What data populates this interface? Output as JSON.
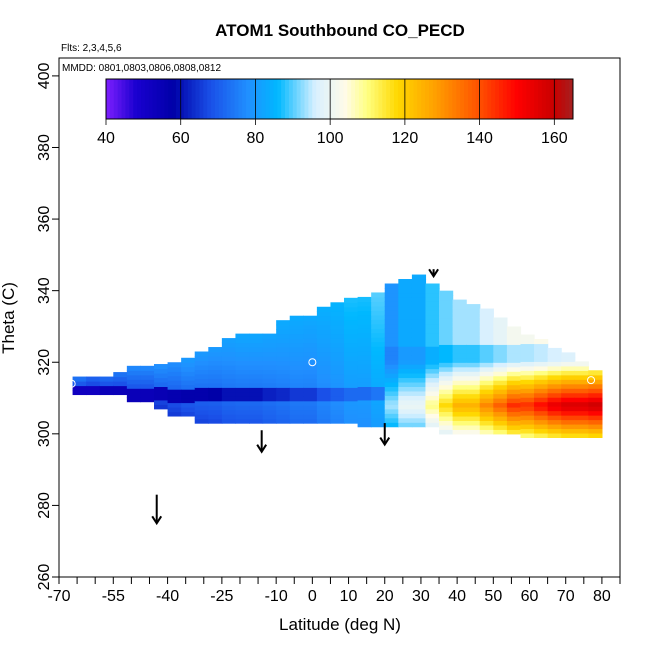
{
  "chart_data": {
    "type": "heatmap",
    "title": "ATOM1 Southbound CO_PECD",
    "flights_note": "Flts: 2,3,4,5,6",
    "dates_note": "MMDD: 0801,0803,0806,0808,0812",
    "xlabel": "Latitude (deg N)",
    "ylabel": "Theta (C)",
    "xlim": [
      -70,
      85
    ],
    "ylim": [
      260,
      405
    ],
    "x_ticks": [
      -70,
      -55,
      -40,
      -25,
      -10,
      0,
      10,
      20,
      30,
      40,
      50,
      60,
      70,
      80
    ],
    "y_ticks": [
      260,
      280,
      300,
      320,
      340,
      360,
      380,
      400
    ],
    "colorbar": {
      "range": [
        40,
        165
      ],
      "ticks": [
        40,
        60,
        80,
        100,
        120,
        140,
        160
      ],
      "stops": [
        {
          "v": 40,
          "color": "#7f1fff"
        },
        {
          "v": 48,
          "color": "#1a00d0"
        },
        {
          "v": 58,
          "color": "#0000a8"
        },
        {
          "v": 68,
          "color": "#1a50e8"
        },
        {
          "v": 78,
          "color": "#2090ff"
        },
        {
          "v": 86,
          "color": "#00b8ff"
        },
        {
          "v": 96,
          "color": "#d8f0ff"
        },
        {
          "v": 104,
          "color": "#fffbe8"
        },
        {
          "v": 110,
          "color": "#ffff80"
        },
        {
          "v": 118,
          "color": "#ffd800"
        },
        {
          "v": 128,
          "color": "#ffa000"
        },
        {
          "v": 140,
          "color": "#ff5000"
        },
        {
          "v": 150,
          "color": "#ff0000"
        },
        {
          "v": 160,
          "color": "#c80000"
        },
        {
          "v": 165,
          "color": "#a52020"
        }
      ]
    },
    "field": {
      "theta_bottom": [
        null,
        311,
        311,
        311,
        311,
        309,
        309,
        307,
        305,
        305,
        303,
        303,
        303,
        303,
        303,
        303,
        303,
        303,
        303,
        303,
        303,
        303,
        302,
        302,
        302,
        302,
        302,
        302,
        300,
        300,
        300,
        300,
        300,
        300,
        299,
        299,
        299,
        299,
        299,
        299
      ],
      "theta_top": [
        null,
        315,
        316,
        316,
        317,
        318,
        318,
        319,
        320,
        321,
        323,
        324,
        326,
        327,
        327,
        328,
        331,
        332,
        333,
        335,
        336,
        337,
        338,
        339,
        341,
        343,
        344,
        341,
        339,
        337,
        336,
        334,
        332,
        329,
        327,
        326,
        324,
        322,
        320,
        317
      ],
      "low_core_theta_min": 309,
      "low_core_theta_max": 313,
      "bins": [
        {
          "lat": -67.5,
          "low": 46,
          "high": 70
        },
        {
          "lat": -62.5,
          "low": 52,
          "high": 72
        },
        {
          "lat": -57.5,
          "low": 54,
          "high": 73
        },
        {
          "lat": -52.5,
          "low": 54,
          "high": 74
        },
        {
          "lat": -47.5,
          "low": 54,
          "high": 76
        },
        {
          "lat": -42.5,
          "low": 55,
          "high": 78
        },
        {
          "lat": -37.5,
          "low": 56,
          "high": 78
        },
        {
          "lat": -32.5,
          "low": 57,
          "high": 80
        },
        {
          "lat": -27.5,
          "low": 58,
          "high": 80
        },
        {
          "lat": -22.5,
          "low": 60,
          "high": 81
        },
        {
          "lat": -17.5,
          "low": 60,
          "high": 82
        },
        {
          "lat": -12.5,
          "low": 62,
          "high": 82
        },
        {
          "lat": -7.5,
          "low": 63,
          "high": 83
        },
        {
          "lat": -2.5,
          "low": 65,
          "high": 83
        },
        {
          "lat": 2.5,
          "low": 68,
          "high": 84
        },
        {
          "lat": 7.5,
          "low": 70,
          "high": 85
        },
        {
          "lat": 12.5,
          "low": 72,
          "high": 87
        },
        {
          "lat": 17.5,
          "low": 74,
          "high": 90
        },
        {
          "lat": 22.5,
          "low": 76,
          "high": 94
        },
        {
          "lat": 27.5,
          "low": 80,
          "high": 100
        },
        {
          "lat": 32.5,
          "low": 84,
          "high": 110
        },
        {
          "lat": 37.5,
          "low": 86,
          "high": 118
        },
        {
          "lat": 42.5,
          "low": 88,
          "high": 125
        },
        {
          "lat": 47.5,
          "low": 90,
          "high": 132
        },
        {
          "lat": 52.5,
          "low": 92,
          "high": 138
        },
        {
          "lat": 57.5,
          "low": 94,
          "high": 145
        },
        {
          "lat": 62.5,
          "low": 95,
          "high": 150
        },
        {
          "lat": 67.5,
          "low": 96,
          "high": 155
        },
        {
          "lat": 72.5,
          "low": 97,
          "high": 158
        },
        {
          "lat": 77.5,
          "low": 98,
          "high": 160
        }
      ]
    },
    "flight_markers": [
      {
        "lat": -67.5,
        "theta": 312
      },
      {
        "lat": -66.5,
        "theta": 314
      },
      {
        "lat": 0,
        "theta": 320
      },
      {
        "lat": 77,
        "theta": 315
      }
    ],
    "arrows": [
      {
        "lat": -43,
        "theta_top": 283,
        "theta_bottom": 275
      },
      {
        "lat": -14,
        "theta_top": 301,
        "theta_bottom": 295
      },
      {
        "lat": 20,
        "theta_top": 303,
        "theta_bottom": 297
      },
      {
        "lat": 33.5,
        "theta_top": 346,
        "theta_bottom": 344
      }
    ]
  }
}
